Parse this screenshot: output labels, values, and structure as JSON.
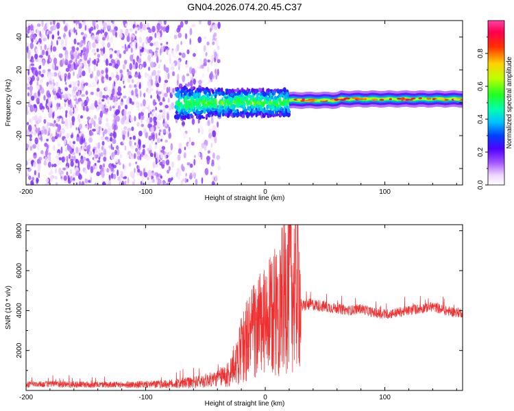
{
  "figure_title": "GN04.2026.074.20.45.C37",
  "chart_data": [
    {
      "id": "spectrogram",
      "type": "heatmap",
      "title": "",
      "xlabel": "Height of straight line (km)",
      "ylabel": "Frequency (Hz)",
      "xlim": [
        -200,
        165
      ],
      "ylim": [
        -50,
        50
      ],
      "xticks": [
        -200,
        -100,
        0,
        100
      ],
      "yticks": [
        -40,
        -20,
        0,
        20,
        40
      ],
      "colorbar": {
        "label": "Normalized spectral amplitude",
        "range": [
          0,
          1
        ],
        "ticks": [
          "0.0",
          "0.2",
          "0.4",
          "0.6",
          "0.8"
        ],
        "colormap": "white-purple-blue-cyan-green-yellow-red-pink"
      },
      "regions": [
        {
          "x": [
            -200,
            -38
          ],
          "description": "broadband noise across full frequency range",
          "amplitude": 0.05
        },
        {
          "x": [
            -75,
            20
          ],
          "freq_center": 0,
          "freq_halfwidth": 8,
          "amplitude": 0.25
        },
        {
          "x": [
            20,
            165
          ],
          "freq_center": 1.5,
          "freq_halfwidth": 2,
          "amplitude": 0.6
        }
      ]
    },
    {
      "id": "snr",
      "type": "line",
      "title": "",
      "xlabel": "Height of straight line (km)",
      "ylabel": "SNR (10 * v/v)",
      "xlim": [
        -200,
        165
      ],
      "ylim": [
        0,
        8300
      ],
      "xticks": [
        -200,
        -100,
        0,
        100
      ],
      "yticks": [
        2000,
        4000,
        6000,
        8000
      ],
      "series": [
        {
          "color": "#f03030",
          "x": [
            -200,
            -180,
            -160,
            -140,
            -120,
            -100,
            -80,
            -60,
            -40,
            -30,
            -25,
            -20,
            -15,
            -10,
            -5,
            0,
            5,
            10,
            15,
            20,
            25,
            28,
            30,
            35,
            40,
            50,
            60,
            70,
            80,
            90,
            100,
            110,
            120,
            130,
            140,
            150,
            160,
            165
          ],
          "y": [
            300,
            320,
            300,
            290,
            280,
            300,
            320,
            400,
            600,
            900,
            1500,
            2200,
            2800,
            3200,
            3500,
            3600,
            4000,
            4500,
            5000,
            6000,
            5500,
            6000,
            4200,
            4300,
            4300,
            4200,
            4100,
            4000,
            4100,
            3900,
            3800,
            3900,
            4000,
            4100,
            4200,
            4000,
            3900,
            3900
          ],
          "noise_amplitude": [
            150,
            160,
            170,
            150,
            160,
            180,
            220,
            300,
            400,
            700,
            1400,
            2000,
            2600,
            3000,
            3200,
            3300,
            3500,
            3800,
            4000,
            4400,
            4200,
            4300,
            300,
            300,
            300,
            300,
            250,
            250,
            250,
            250,
            250,
            250,
            250,
            250,
            250,
            250,
            250,
            250
          ]
        }
      ]
    }
  ]
}
